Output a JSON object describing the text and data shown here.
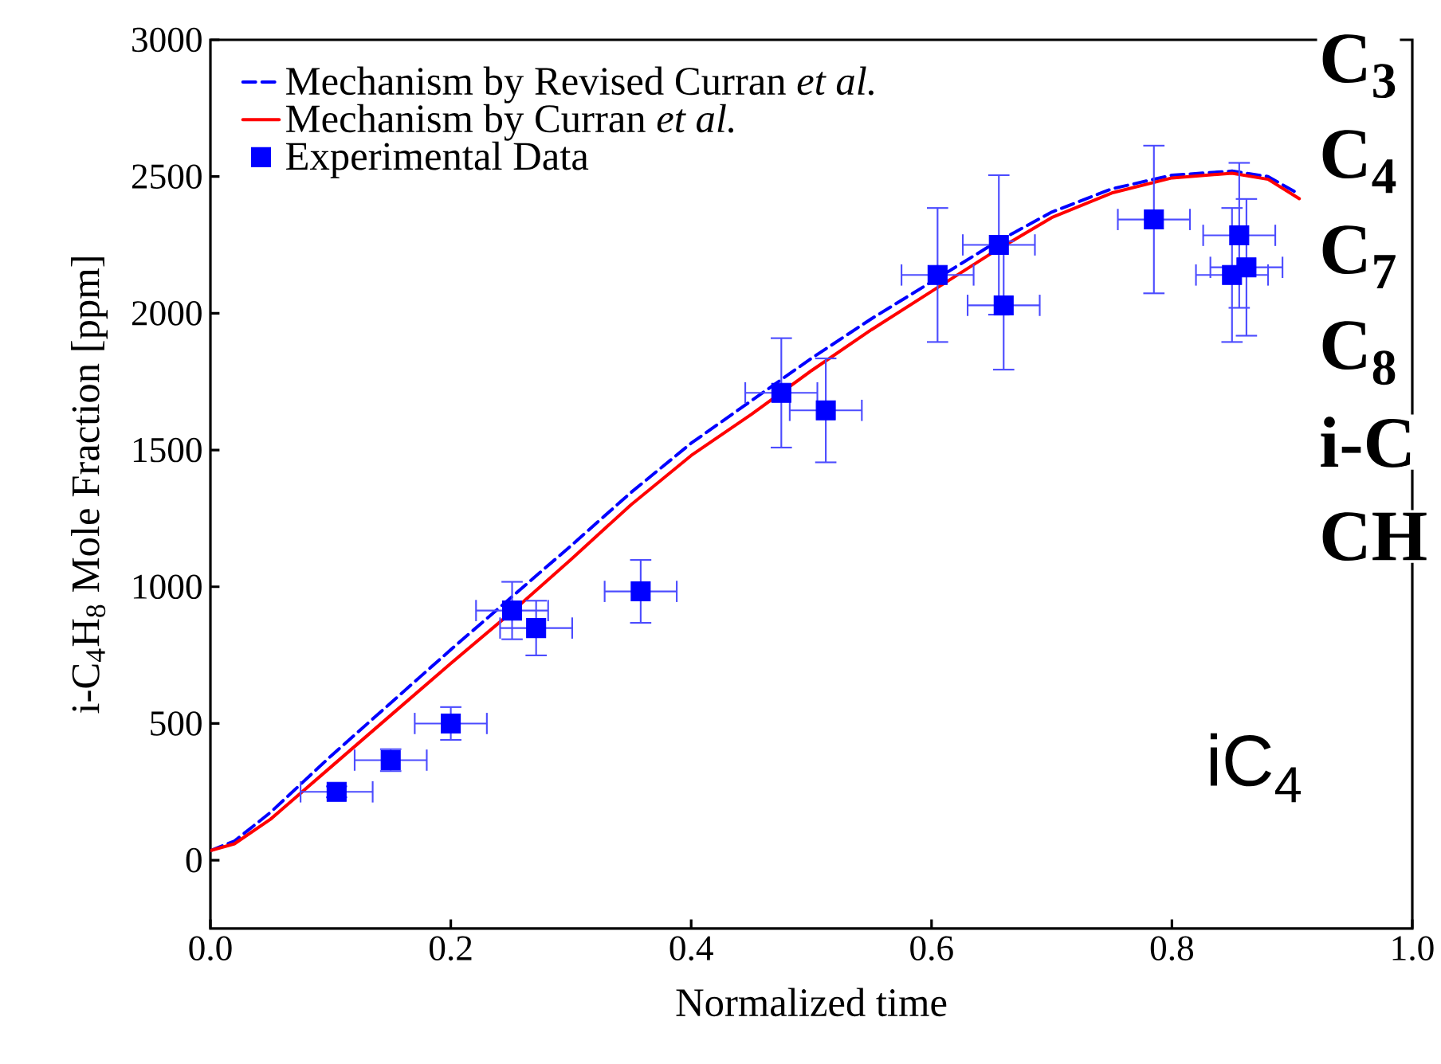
{
  "chart_data": {
    "type": "line",
    "xlabel": "Normalized time",
    "ylabel": "i-C$_{4}$H$_{8}$  Mole Fraction [ppm]",
    "xlim": [
      0,
      1
    ],
    "ylim": [
      -250,
      3000
    ],
    "xticks": [
      {
        "value": 0,
        "label": "0.0"
      },
      {
        "value": 0.2,
        "label": "0.2"
      },
      {
        "value": 0.4,
        "label": "0.4"
      },
      {
        "value": 0.6,
        "label": "0.6"
      },
      {
        "value": 0.8,
        "label": "0.8"
      },
      {
        "value": 1,
        "label": "1.0"
      }
    ],
    "yticks": [
      0,
      500,
      1000,
      1500,
      2000,
      2500,
      3000
    ],
    "legend": "top left",
    "series": [
      {
        "name": "Mechanism by Revised Curran *et al.*",
        "type": "line",
        "line_style": "dashed",
        "marker": "none",
        "color": "#0000ff",
        "x": [
          0,
          0.02,
          0.05,
          0.1,
          0.15,
          0.2,
          0.25,
          0.3,
          0.35,
          0.4,
          0.45,
          0.5,
          0.55,
          0.6,
          0.65,
          0.7,
          0.75,
          0.8,
          0.85,
          0.88,
          0.906
        ],
        "values": [
          35,
          70,
          175,
          380,
          575,
          770,
          960,
          1150,
          1345,
          1525,
          1680,
          1835,
          1980,
          2115,
          2250,
          2370,
          2455,
          2505,
          2520,
          2500,
          2435
        ]
      },
      {
        "name": "Mechanism by Curran *et al.*",
        "type": "line",
        "line_style": "solid",
        "marker": "none",
        "color": "#ff0000",
        "x": [
          0,
          0.02,
          0.05,
          0.1,
          0.15,
          0.2,
          0.25,
          0.3,
          0.35,
          0.4,
          0.45,
          0.5,
          0.55,
          0.6,
          0.65,
          0.7,
          0.75,
          0.8,
          0.85,
          0.88,
          0.906
        ],
        "values": [
          35,
          60,
          150,
          340,
          530,
          720,
          905,
          1100,
          1300,
          1480,
          1630,
          1790,
          1940,
          2080,
          2220,
          2350,
          2440,
          2495,
          2512,
          2490,
          2419
        ]
      },
      {
        "name": "Experimental Data",
        "type": "scatter",
        "marker": "square",
        "color": "#0000ff",
        "x": [
          0.105,
          0.15,
          0.2,
          0.251,
          0.271,
          0.358,
          0.475,
          0.512,
          0.605,
          0.656,
          0.66,
          0.785,
          0.85,
          0.856,
          0.862
        ],
        "values": [
          250,
          366,
          500,
          913,
          849,
          983,
          1709,
          1645,
          2140,
          2250,
          2029,
          2343,
          2140,
          2285,
          2168
        ],
        "errors": [
          20,
          40,
          60,
          105,
          100,
          115,
          200,
          190,
          245,
          255,
          235,
          270,
          245,
          265,
          250
        ],
        "xerrors": [
          0.03,
          0.03,
          0.03,
          0.03,
          0.03,
          0.03,
          0.03,
          0.03,
          0.03,
          0.03,
          0.03,
          0.03,
          0.03,
          0.03,
          0.03
        ]
      }
    ],
    "annotations": [
      "C$_{3}$",
      "C$_{4}$",
      "C$_{7}$",
      "C$_{8}$",
      "i-C",
      "CH",
      "iC$_{4}$"
    ]
  }
}
